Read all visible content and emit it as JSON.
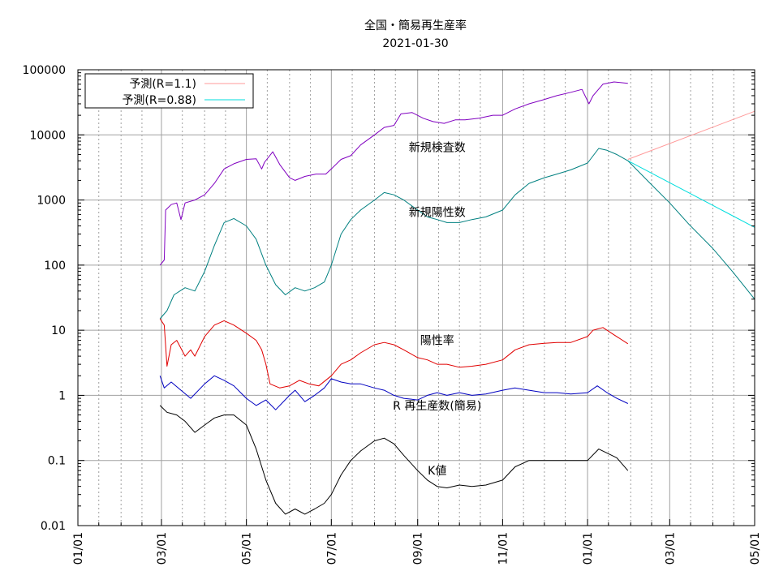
{
  "chart_data": {
    "type": "line",
    "title": "全国・簡易再生産率",
    "subtitle": "2021-01-30",
    "xlabel": "",
    "ylabel": "",
    "y_scale": "log",
    "ylim": [
      0.01,
      100000
    ],
    "xlim": [
      "2020-01-01",
      "2021-05-01"
    ],
    "y_ticks": [
      {
        "v": 0.01,
        "label": "0.01"
      },
      {
        "v": 0.1,
        "label": "0.1"
      },
      {
        "v": 1,
        "label": "1"
      },
      {
        "v": 10,
        "label": "10"
      },
      {
        "v": 100,
        "label": "100"
      },
      {
        "v": 1000,
        "label": "1000"
      },
      {
        "v": 10000,
        "label": "10000"
      },
      {
        "v": 100000,
        "label": "100000"
      }
    ],
    "x_ticks": [
      {
        "v": "2020-01-01",
        "label": "01/01"
      },
      {
        "v": "2020-03-01",
        "label": "03/01"
      },
      {
        "v": "2020-05-01",
        "label": "05/01"
      },
      {
        "v": "2020-07-01",
        "label": "07/01"
      },
      {
        "v": "2020-09-01",
        "label": "09/01"
      },
      {
        "v": "2020-11-01",
        "label": "11/01"
      },
      {
        "v": "2021-01-01",
        "label": "01/01"
      },
      {
        "v": "2021-03-01",
        "label": "03/01"
      },
      {
        "v": "2021-05-01",
        "label": "05/01"
      }
    ],
    "grid": true,
    "legend": {
      "position": "top-left"
    },
    "series": [
      {
        "name": "予測(R=1.1)",
        "color": "#ff9a9a",
        "in_legend": true,
        "points": [
          [
            "2021-01-30",
            4200
          ],
          [
            "2021-05-01",
            23000
          ]
        ]
      },
      {
        "name": "予測(R=0.88)",
        "color": "#00dede",
        "in_legend": true,
        "points": [
          [
            "2021-01-30",
            4000
          ],
          [
            "2021-05-01",
            380
          ]
        ]
      },
      {
        "name": "",
        "color": "#8000c0",
        "in_legend": false,
        "points": [
          [
            "2020-02-29",
            100
          ],
          [
            "2020-03-03",
            120
          ],
          [
            "2020-03-04",
            700
          ],
          [
            "2020-03-08",
            850
          ],
          [
            "2020-03-12",
            900
          ],
          [
            "2020-03-15",
            500
          ],
          [
            "2020-03-18",
            900
          ],
          [
            "2020-03-25",
            1000
          ],
          [
            "2020-04-01",
            1200
          ],
          [
            "2020-04-08",
            1800
          ],
          [
            "2020-04-15",
            3000
          ],
          [
            "2020-04-22",
            3600
          ],
          [
            "2020-05-01",
            4200
          ],
          [
            "2020-05-08",
            4300
          ],
          [
            "2020-05-12",
            3000
          ],
          [
            "2020-05-14",
            3800
          ],
          [
            "2020-05-20",
            5500
          ],
          [
            "2020-05-25",
            3500
          ],
          [
            "2020-06-01",
            2200
          ],
          [
            "2020-06-05",
            2000
          ],
          [
            "2020-06-12",
            2300
          ],
          [
            "2020-06-20",
            2500
          ],
          [
            "2020-06-27",
            2500
          ],
          [
            "2020-07-01",
            3000
          ],
          [
            "2020-07-08",
            4200
          ],
          [
            "2020-07-15",
            4800
          ],
          [
            "2020-07-22",
            7000
          ],
          [
            "2020-08-01",
            10000
          ],
          [
            "2020-08-08",
            13000
          ],
          [
            "2020-08-15",
            14000
          ],
          [
            "2020-08-20",
            21000
          ],
          [
            "2020-08-28",
            22000
          ],
          [
            "2020-09-05",
            18000
          ],
          [
            "2020-09-12",
            16000
          ],
          [
            "2020-09-20",
            15000
          ],
          [
            "2020-09-28",
            17000
          ],
          [
            "2020-10-05",
            17000
          ],
          [
            "2020-10-15",
            18000
          ],
          [
            "2020-10-25",
            20000
          ],
          [
            "2020-11-01",
            20000
          ],
          [
            "2020-11-10",
            25000
          ],
          [
            "2020-11-20",
            30000
          ],
          [
            "2020-12-01",
            35000
          ],
          [
            "2020-12-10",
            40000
          ],
          [
            "2020-12-20",
            45000
          ],
          [
            "2020-12-28",
            50000
          ],
          [
            "2021-01-02",
            30000
          ],
          [
            "2021-01-05",
            40000
          ],
          [
            "2021-01-12",
            60000
          ],
          [
            "2021-01-20",
            65000
          ],
          [
            "2021-01-30",
            62000
          ]
        ]
      },
      {
        "name": "",
        "color": "#008080",
        "in_legend": false,
        "points": [
          [
            "2020-02-29",
            15
          ],
          [
            "2020-03-05",
            20
          ],
          [
            "2020-03-10",
            35
          ],
          [
            "2020-03-18",
            45
          ],
          [
            "2020-03-25",
            40
          ],
          [
            "2020-04-01",
            80
          ],
          [
            "2020-04-08",
            200
          ],
          [
            "2020-04-15",
            450
          ],
          [
            "2020-04-22",
            520
          ],
          [
            "2020-05-01",
            400
          ],
          [
            "2020-05-08",
            250
          ],
          [
            "2020-05-15",
            100
          ],
          [
            "2020-05-22",
            50
          ],
          [
            "2020-05-29",
            35
          ],
          [
            "2020-06-05",
            45
          ],
          [
            "2020-06-12",
            40
          ],
          [
            "2020-06-19",
            45
          ],
          [
            "2020-06-26",
            55
          ],
          [
            "2020-07-01",
            100
          ],
          [
            "2020-07-08",
            300
          ],
          [
            "2020-07-15",
            500
          ],
          [
            "2020-07-22",
            700
          ],
          [
            "2020-08-01",
            1000
          ],
          [
            "2020-08-08",
            1300
          ],
          [
            "2020-08-15",
            1200
          ],
          [
            "2020-08-22",
            1000
          ],
          [
            "2020-09-01",
            700
          ],
          [
            "2020-09-08",
            550
          ],
          [
            "2020-09-15",
            500
          ],
          [
            "2020-09-22",
            450
          ],
          [
            "2020-10-01",
            450
          ],
          [
            "2020-10-10",
            500
          ],
          [
            "2020-10-20",
            550
          ],
          [
            "2020-11-01",
            700
          ],
          [
            "2020-11-10",
            1200
          ],
          [
            "2020-11-20",
            1800
          ],
          [
            "2020-12-01",
            2200
          ],
          [
            "2020-12-10",
            2500
          ],
          [
            "2020-12-20",
            2900
          ],
          [
            "2021-01-01",
            3700
          ],
          [
            "2021-01-09",
            6200
          ],
          [
            "2021-01-15",
            5800
          ],
          [
            "2021-01-22",
            5000
          ],
          [
            "2021-01-30",
            4000
          ],
          [
            "2021-02-15",
            1800
          ],
          [
            "2021-03-01",
            900
          ],
          [
            "2021-03-15",
            420
          ],
          [
            "2021-04-01",
            180
          ],
          [
            "2021-04-15",
            80
          ],
          [
            "2021-05-01",
            30
          ]
        ]
      },
      {
        "name": "",
        "color": "#e00000",
        "in_legend": false,
        "points": [
          [
            "2020-02-29",
            15
          ],
          [
            "2020-03-03",
            12
          ],
          [
            "2020-03-05",
            2.8
          ],
          [
            "2020-03-08",
            6
          ],
          [
            "2020-03-12",
            7
          ],
          [
            "2020-03-18",
            4
          ],
          [
            "2020-03-22",
            5
          ],
          [
            "2020-03-25",
            4
          ],
          [
            "2020-04-01",
            8
          ],
          [
            "2020-04-08",
            12
          ],
          [
            "2020-04-15",
            14
          ],
          [
            "2020-04-22",
            12
          ],
          [
            "2020-05-01",
            9
          ],
          [
            "2020-05-08",
            7
          ],
          [
            "2020-05-12",
            5
          ],
          [
            "2020-05-15",
            3
          ],
          [
            "2020-05-18",
            1.5
          ],
          [
            "2020-05-25",
            1.3
          ],
          [
            "2020-06-01",
            1.4
          ],
          [
            "2020-06-08",
            1.7
          ],
          [
            "2020-06-15",
            1.5
          ],
          [
            "2020-06-22",
            1.4
          ],
          [
            "2020-07-01",
            2
          ],
          [
            "2020-07-08",
            3
          ],
          [
            "2020-07-15",
            3.5
          ],
          [
            "2020-07-22",
            4.5
          ],
          [
            "2020-08-01",
            6
          ],
          [
            "2020-08-08",
            6.5
          ],
          [
            "2020-08-15",
            6
          ],
          [
            "2020-08-22",
            5
          ],
          [
            "2020-09-01",
            3.8
          ],
          [
            "2020-09-08",
            3.5
          ],
          [
            "2020-09-15",
            3
          ],
          [
            "2020-09-22",
            3
          ],
          [
            "2020-10-01",
            2.7
          ],
          [
            "2020-10-10",
            2.8
          ],
          [
            "2020-10-20",
            3
          ],
          [
            "2020-11-01",
            3.5
          ],
          [
            "2020-11-10",
            5
          ],
          [
            "2020-11-20",
            6
          ],
          [
            "2020-12-01",
            6.3
          ],
          [
            "2020-12-10",
            6.5
          ],
          [
            "2020-12-20",
            6.5
          ],
          [
            "2021-01-01",
            8
          ],
          [
            "2021-01-05",
            10
          ],
          [
            "2021-01-12",
            11
          ],
          [
            "2021-01-20",
            8.5
          ],
          [
            "2021-01-30",
            6.2
          ]
        ]
      },
      {
        "name": "",
        "color": "#0000c0",
        "in_legend": false,
        "points": [
          [
            "2020-02-29",
            2
          ],
          [
            "2020-03-03",
            1.3
          ],
          [
            "2020-03-08",
            1.6
          ],
          [
            "2020-03-15",
            1.2
          ],
          [
            "2020-03-22",
            0.9
          ],
          [
            "2020-04-01",
            1.5
          ],
          [
            "2020-04-08",
            2
          ],
          [
            "2020-04-15",
            1.7
          ],
          [
            "2020-04-22",
            1.4
          ],
          [
            "2020-05-01",
            0.9
          ],
          [
            "2020-05-08",
            0.7
          ],
          [
            "2020-05-15",
            0.85
          ],
          [
            "2020-05-22",
            0.6
          ],
          [
            "2020-06-01",
            1
          ],
          [
            "2020-06-05",
            1.2
          ],
          [
            "2020-06-12",
            0.8
          ],
          [
            "2020-06-19",
            1
          ],
          [
            "2020-06-26",
            1.3
          ],
          [
            "2020-07-01",
            1.8
          ],
          [
            "2020-07-08",
            1.6
          ],
          [
            "2020-07-15",
            1.5
          ],
          [
            "2020-07-22",
            1.5
          ],
          [
            "2020-08-01",
            1.3
          ],
          [
            "2020-08-08",
            1.2
          ],
          [
            "2020-08-15",
            1
          ],
          [
            "2020-08-22",
            0.9
          ],
          [
            "2020-09-01",
            0.85
          ],
          [
            "2020-09-08",
            1
          ],
          [
            "2020-09-15",
            1.1
          ],
          [
            "2020-09-22",
            1
          ],
          [
            "2020-10-01",
            1.1
          ],
          [
            "2020-10-10",
            1
          ],
          [
            "2020-10-20",
            1.05
          ],
          [
            "2020-11-01",
            1.2
          ],
          [
            "2020-11-10",
            1.3
          ],
          [
            "2020-11-20",
            1.2
          ],
          [
            "2020-12-01",
            1.1
          ],
          [
            "2020-12-10",
            1.1
          ],
          [
            "2020-12-20",
            1.05
          ],
          [
            "2021-01-01",
            1.1
          ],
          [
            "2021-01-08",
            1.4
          ],
          [
            "2021-01-15",
            1.1
          ],
          [
            "2021-01-22",
            0.9
          ],
          [
            "2021-01-30",
            0.75
          ]
        ]
      },
      {
        "name": "",
        "color": "#000000",
        "in_legend": false,
        "points": [
          [
            "2020-02-29",
            0.7
          ],
          [
            "2020-03-05",
            0.55
          ],
          [
            "2020-03-12",
            0.5
          ],
          [
            "2020-03-18",
            0.4
          ],
          [
            "2020-03-25",
            0.27
          ],
          [
            "2020-04-01",
            0.35
          ],
          [
            "2020-04-08",
            0.45
          ],
          [
            "2020-04-15",
            0.5
          ],
          [
            "2020-04-22",
            0.5
          ],
          [
            "2020-05-01",
            0.35
          ],
          [
            "2020-05-08",
            0.15
          ],
          [
            "2020-05-15",
            0.05
          ],
          [
            "2020-05-22",
            0.022
          ],
          [
            "2020-05-29",
            0.015
          ],
          [
            "2020-06-05",
            0.018
          ],
          [
            "2020-06-12",
            0.015
          ],
          [
            "2020-06-19",
            0.018
          ],
          [
            "2020-06-26",
            0.022
          ],
          [
            "2020-07-01",
            0.03
          ],
          [
            "2020-07-08",
            0.06
          ],
          [
            "2020-07-15",
            0.1
          ],
          [
            "2020-07-22",
            0.14
          ],
          [
            "2020-08-01",
            0.2
          ],
          [
            "2020-08-08",
            0.22
          ],
          [
            "2020-08-15",
            0.18
          ],
          [
            "2020-08-22",
            0.12
          ],
          [
            "2020-09-01",
            0.07
          ],
          [
            "2020-09-08",
            0.05
          ],
          [
            "2020-09-15",
            0.04
          ],
          [
            "2020-09-22",
            0.038
          ],
          [
            "2020-10-01",
            0.042
          ],
          [
            "2020-10-10",
            0.04
          ],
          [
            "2020-10-20",
            0.042
          ],
          [
            "2020-11-01",
            0.05
          ],
          [
            "2020-11-10",
            0.08
          ],
          [
            "2020-11-20",
            0.1
          ],
          [
            "2020-12-01",
            0.1
          ],
          [
            "2020-12-10",
            0.1
          ],
          [
            "2020-12-20",
            0.1
          ],
          [
            "2021-01-01",
            0.1
          ],
          [
            "2021-01-09",
            0.15
          ],
          [
            "2021-01-15",
            0.13
          ],
          [
            "2021-01-22",
            0.11
          ],
          [
            "2021-01-30",
            0.07
          ]
        ]
      }
    ],
    "annotations": [
      {
        "text": "新規検査数",
        "at": [
          "2020-09-15",
          6500
        ]
      },
      {
        "text": "新規陽性数",
        "at": [
          "2020-09-15",
          650
        ]
      },
      {
        "text": "陽性率",
        "at": [
          "2020-09-15",
          7.0
        ]
      },
      {
        "text": "R  再生産数(簡易)",
        "at": [
          "2020-09-15",
          0.7
        ]
      },
      {
        "text": "K値",
        "at": [
          "2020-09-15",
          0.07
        ]
      }
    ]
  }
}
